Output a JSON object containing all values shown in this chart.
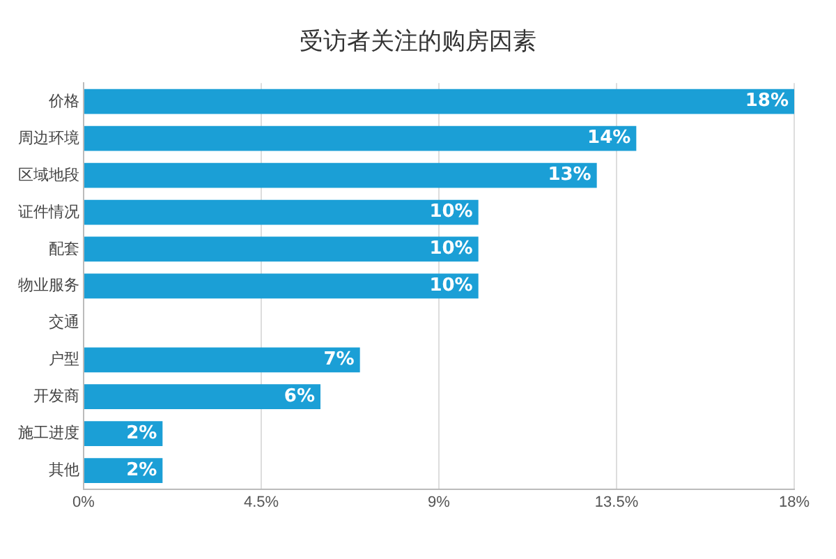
{
  "chart_data": {
    "type": "bar",
    "orientation": "horizontal",
    "title": "受访者关注的购房因素",
    "categories": [
      "价格",
      "周边环境",
      "区域地段",
      "证件情况",
      "配套",
      "物业服务",
      "交通",
      "户型",
      "开发商",
      "施工进度",
      "其他"
    ],
    "values": [
      18,
      14,
      13,
      10,
      10,
      10,
      null,
      7,
      6,
      2,
      2
    ],
    "value_labels": [
      "18%",
      "14%",
      "13%",
      "10%",
      "10%",
      "10%",
      null,
      "7%",
      "6%",
      "2%",
      "2%"
    ],
    "color": "#1b9fd6",
    "xlim": [
      0,
      18
    ],
    "xticks": [
      {
        "value": 0,
        "label": "0%"
      },
      {
        "value": 4.5,
        "label": "4.5%"
      },
      {
        "value": 9,
        "label": "9%"
      },
      {
        "value": 13.5,
        "label": "13.5%"
      },
      {
        "value": 18,
        "label": "18%"
      }
    ],
    "grid": "x"
  }
}
